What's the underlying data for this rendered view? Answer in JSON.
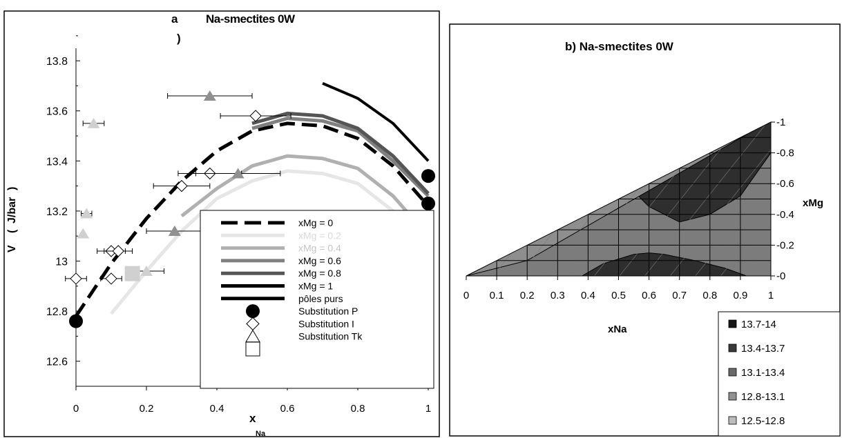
{
  "left_panel": {
    "panel_letter": "a",
    "panel_paren": ")",
    "title": "Na-smectites 0W",
    "ylabel_v": "V",
    "ylabel_paren_open": "(",
    "ylabel_unit": "J/bar",
    "ylabel_paren_close": ")",
    "xlabel_x": "x",
    "xlabel_sub": "Na",
    "legend": [
      {
        "label": "xMg = 0",
        "style": "dash-black"
      },
      {
        "label": "xMg = 0.2",
        "style": "line-vlight"
      },
      {
        "label": "xMg = 0.4",
        "style": "line-light"
      },
      {
        "label": "xMg = 0.6",
        "style": "line-mid"
      },
      {
        "label": "xMg = 0.8",
        "style": "line-dark"
      },
      {
        "label": "xMg = 1",
        "style": "line-black"
      },
      {
        "label": "pôles purs",
        "style": "line-black"
      },
      {
        "label": "Substitution P",
        "style": "marker-circle"
      },
      {
        "label": "Substitution I",
        "style": "marker-diamond"
      },
      {
        "label": "Substitution Tk",
        "style": "marker-triangle"
      },
      {
        "label": "",
        "style": "marker-square"
      }
    ]
  },
  "right_panel": {
    "title": "b) Na-smectites 0W",
    "xlabel": "xNa",
    "ylabel": "xMg",
    "legend": [
      {
        "label": "13.7-14",
        "color": "#161616"
      },
      {
        "label": "13.4-13.7",
        "color": "#3a3a3a"
      },
      {
        "label": "13.1-13.4",
        "color": "#6a6a6a"
      },
      {
        "label": "12.8-13.1",
        "color": "#929292"
      },
      {
        "label": "12.5-12.8",
        "color": "#bdbdbd"
      }
    ]
  },
  "chart_data": [
    {
      "type": "line",
      "title": "Na-smectites 0W",
      "xlabel": "xNa",
      "ylabel": "V (J/bar)",
      "xlim": [
        0,
        1
      ],
      "ylim": [
        12.5,
        13.85
      ],
      "x_ticks": [
        0,
        0.2,
        0.4,
        0.6,
        0.8,
        1
      ],
      "x_tick_labels": [
        "0",
        "0.2",
        "0.4",
        "0.6",
        "0.8",
        "1"
      ],
      "y_ticks": [
        12.6,
        12.8,
        13.0,
        13.2,
        13.4,
        13.6,
        13.8
      ],
      "y_tick_labels": [
        "12.6",
        "12.8",
        "13",
        "13.2",
        "13.4",
        "13.6",
        "13.8"
      ],
      "series": [
        {
          "name": "xMg = 0",
          "color": "#000000",
          "x": [
            0,
            0.1,
            0.2,
            0.3,
            0.4,
            0.5,
            0.6,
            0.7,
            0.8,
            0.9,
            1.0
          ],
          "y": [
            12.78,
            12.99,
            13.17,
            13.32,
            13.44,
            13.52,
            13.55,
            13.54,
            13.49,
            13.38,
            13.22
          ]
        },
        {
          "name": "xMg = 0.2",
          "color": "#e6e6e6",
          "x": [
            0.1,
            0.2,
            0.3,
            0.4,
            0.5,
            0.6,
            0.7,
            0.8,
            0.9,
            1.0
          ],
          "y": [
            12.79,
            12.96,
            13.12,
            13.25,
            13.32,
            13.36,
            13.35,
            13.31,
            13.2,
            13.05
          ]
        },
        {
          "name": "xMg = 0.4",
          "color": "#b0b0b0",
          "x": [
            0.3,
            0.4,
            0.5,
            0.6,
            0.7,
            0.8,
            0.9,
            1.0
          ],
          "y": [
            13.18,
            13.29,
            13.38,
            13.42,
            13.41,
            13.37,
            13.26,
            13.1
          ]
        },
        {
          "name": "xMg = 0.6",
          "color": "#808080",
          "x": [
            0.5,
            0.6,
            0.7,
            0.8,
            0.9,
            1.0
          ],
          "y": [
            13.53,
            13.57,
            13.56,
            13.52,
            13.4,
            13.26
          ]
        },
        {
          "name": "xMg = 0.8",
          "color": "#555555",
          "x": [
            0.5,
            0.6,
            0.7,
            0.8,
            0.9,
            1.0
          ],
          "y": [
            13.55,
            13.59,
            13.58,
            13.53,
            13.42,
            13.27
          ]
        },
        {
          "name": "xMg = 1",
          "color": "#000000",
          "x": [
            0.7,
            0.8,
            0.9,
            1.0
          ],
          "y": [
            13.71,
            13.65,
            13.55,
            13.4
          ]
        }
      ],
      "points": {
        "Substitution P": [
          {
            "x": 0.0,
            "y": 12.76
          },
          {
            "x": 1.0,
            "y": 13.34
          },
          {
            "x": 1.0,
            "y": 13.23
          }
        ],
        "Substitution I": [
          {
            "x": 0.0,
            "y": 12.93
          },
          {
            "x": 0.1,
            "y": 12.93
          },
          {
            "x": 0.1,
            "y": 13.04
          },
          {
            "x": 0.12,
            "y": 13.04
          },
          {
            "x": 0.3,
            "y": 13.3
          },
          {
            "x": 0.38,
            "y": 13.35
          },
          {
            "x": 0.51,
            "y": 13.58
          }
        ],
        "Substitution Tk": [
          {
            "x": 0.02,
            "y": 13.11
          },
          {
            "x": 0.03,
            "y": 13.19
          },
          {
            "x": 0.05,
            "y": 13.55
          },
          {
            "x": 0.2,
            "y": 12.96
          },
          {
            "x": 0.28,
            "y": 13.12
          },
          {
            "x": 0.38,
            "y": 13.66
          },
          {
            "x": 0.46,
            "y": 13.35
          }
        ],
        "square": [
          {
            "x": 0.16,
            "y": 12.95
          }
        ]
      }
    },
    {
      "type": "heatmap",
      "title": "b) Na-smectites 0W",
      "xlabel": "xNa",
      "ylabel": "xMg",
      "xlim": [
        0,
        1
      ],
      "ylim": [
        0,
        1
      ],
      "x_ticks": [
        0,
        0.1,
        0.2,
        0.3,
        0.4,
        0.5,
        0.6,
        0.7,
        0.8,
        0.9,
        1
      ],
      "x_tick_labels": [
        "0",
        "0.1",
        "0.2",
        "0.3",
        "0.4",
        "0.5",
        "0.6",
        "0.7",
        "0.8",
        "0.9",
        "1"
      ],
      "y_ticks": [
        0,
        0.2,
        0.4,
        0.6,
        0.8,
        1
      ],
      "y_tick_labels": [
        "0",
        "0.2",
        "0.4",
        "0.6",
        "0.8",
        "1"
      ],
      "legend": [
        "13.7-14",
        "13.4-13.7",
        "13.1-13.4",
        "12.8-13.1",
        "12.5-12.8"
      ],
      "regions": [
        {
          "range": "13.4-13.7",
          "x": [
            0.38,
            0.45,
            0.55,
            0.6,
            0.65,
            0.75,
            0.85,
            0.92
          ],
          "y": [
            0,
            0.08,
            0.14,
            0.15,
            0.14,
            0.1,
            0.05,
            0
          ]
        },
        {
          "range": "13.4-13.7",
          "x": [
            0.55,
            0.6,
            0.7,
            0.8,
            0.9,
            1.0,
            1.0
          ],
          "y": [
            0.55,
            0.45,
            0.35,
            0.4,
            0.52,
            0.8,
            1.0
          ]
        },
        {
          "range": "12.8-13.1",
          "x": [
            0.0,
            0.1,
            0.2
          ],
          "y": [
            0,
            0.05,
            0.1
          ]
        }
      ]
    }
  ]
}
